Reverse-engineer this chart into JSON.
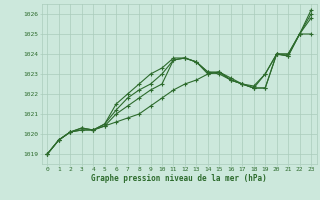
{
  "xlabel": "Graphe pression niveau de la mer (hPa)",
  "xlim": [
    -0.5,
    23.5
  ],
  "ylim": [
    1018.5,
    1026.5
  ],
  "yticks": [
    1019,
    1020,
    1021,
    1022,
    1023,
    1024,
    1025,
    1026
  ],
  "xticks": [
    0,
    1,
    2,
    3,
    4,
    5,
    6,
    7,
    8,
    9,
    10,
    11,
    12,
    13,
    14,
    15,
    16,
    17,
    18,
    19,
    20,
    21,
    22,
    23
  ],
  "bg_color": "#cce8dc",
  "grid_color": "#aaccbb",
  "line_color": "#2d6b2d",
  "series": [
    [
      1019.0,
      1019.7,
      1020.1,
      1020.2,
      1020.2,
      1020.4,
      1020.6,
      1020.8,
      1021.0,
      1021.4,
      1021.8,
      1022.2,
      1022.5,
      1022.7,
      1023.0,
      1023.1,
      1022.7,
      1022.5,
      1022.3,
      1022.3,
      1024.0,
      1023.9,
      1025.0,
      1025.0
    ],
    [
      1019.0,
      1019.7,
      1020.1,
      1020.2,
      1020.2,
      1020.4,
      1021.0,
      1021.4,
      1021.8,
      1022.2,
      1022.5,
      1023.7,
      1023.8,
      1023.6,
      1023.1,
      1023.0,
      1022.7,
      1022.5,
      1022.3,
      1022.3,
      1024.0,
      1023.9,
      1025.0,
      1025.8
    ],
    [
      1019.0,
      1019.7,
      1020.1,
      1020.3,
      1020.2,
      1020.5,
      1021.2,
      1021.8,
      1022.2,
      1022.5,
      1023.0,
      1023.7,
      1023.8,
      1023.6,
      1023.0,
      1023.1,
      1022.7,
      1022.5,
      1022.3,
      1023.0,
      1024.0,
      1024.0,
      1025.0,
      1026.0
    ],
    [
      1019.0,
      1019.7,
      1020.1,
      1020.3,
      1020.2,
      1020.5,
      1021.5,
      1022.0,
      1022.5,
      1023.0,
      1023.3,
      1023.8,
      1023.8,
      1023.6,
      1023.1,
      1023.1,
      1022.8,
      1022.5,
      1022.4,
      1023.0,
      1024.0,
      1024.0,
      1025.0,
      1026.2
    ]
  ]
}
